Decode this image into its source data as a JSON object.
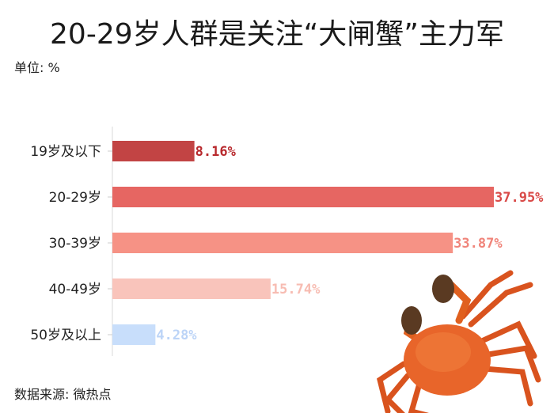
{
  "chart_data": {
    "type": "bar",
    "orientation": "horizontal",
    "title": "20-29岁人群是关注“大闸蟹”主力军",
    "unit_label": "单位: %",
    "source": "数据来源: 微热点",
    "categories": [
      "19岁及以下",
      "20-29岁",
      "30-39岁",
      "40-49岁",
      "50岁及以上"
    ],
    "values": [
      8.16,
      37.95,
      33.87,
      15.74,
      4.28
    ],
    "data_labels": [
      "8.16%",
      "37.95%",
      "33.87%",
      "15.74%",
      "4.28%"
    ],
    "colors": [
      "#c24444",
      "#e66662",
      "#f69285",
      "#f9c4bb",
      "#c8defb"
    ],
    "label_colors": [
      "#b8292d",
      "#d94a48",
      "#f0847a",
      "#f7bcb2",
      "#bcd4f7"
    ],
    "xlim": [
      0,
      38
    ],
    "grid": false,
    "legend": "none"
  },
  "decoration": {
    "image": "crab-illustration"
  }
}
